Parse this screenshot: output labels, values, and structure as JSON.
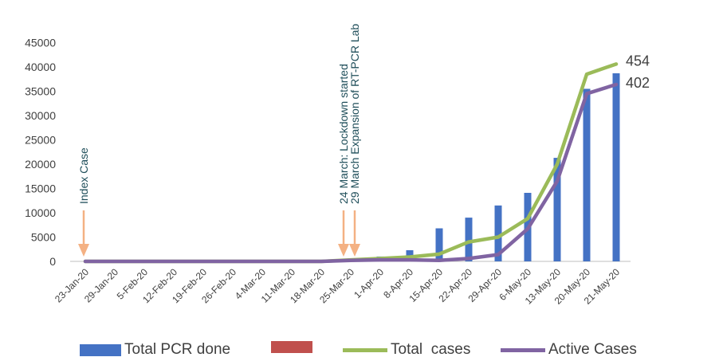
{
  "chart_data": {
    "type": "bar+line",
    "categories": [
      "23-Jan-20",
      "29-Jan-20",
      "5-Feb-20",
      "12-Feb-20",
      "19-Feb-20",
      "26-Feb-20",
      "4-Mar-20",
      "11-Mar-20",
      "18-Mar-20",
      "25-Mar-20",
      "1-Apr-20",
      "8-Apr-20",
      "15-Apr-20",
      "22-Apr-20",
      "29-Apr-20",
      "6-May-20",
      "13-May-20",
      "20-May-20",
      "21-May-20"
    ],
    "ylim": [
      0,
      45000
    ],
    "yticks": [
      "0",
      "5000",
      "10000",
      "15000",
      "20000",
      "25000",
      "30000",
      "35000",
      "40000",
      "45000"
    ],
    "series": [
      {
        "name": "Total PCR done",
        "kind": "bar",
        "color": "#4472c4",
        "values": [
          0,
          0,
          0,
          0,
          0,
          0,
          0,
          0,
          0,
          300,
          1000,
          2300,
          6800,
          9000,
          11500,
          14100,
          21300,
          35500,
          38700
        ]
      },
      {
        "name": "",
        "kind": "bar",
        "color": "#c0504d",
        "values": [
          0,
          0,
          0,
          0,
          0,
          0,
          0,
          0,
          0,
          0,
          0,
          0,
          0,
          0,
          0,
          0,
          0,
          0,
          0
        ]
      },
      {
        "name": "Total  cases",
        "kind": "line",
        "color": "#9bbb59",
        "values": [
          0,
          0,
          0,
          0,
          0,
          0,
          0,
          0,
          0,
          300,
          600,
          900,
          1500,
          4000,
          5000,
          8800,
          20000,
          38500,
          40600
        ]
      },
      {
        "name": "Active Cases",
        "kind": "line",
        "color": "#8064a2",
        "values": [
          0,
          0,
          0,
          0,
          0,
          0,
          0,
          0,
          0,
          200,
          300,
          300,
          200,
          600,
          1400,
          6700,
          16500,
          34500,
          36400
        ]
      }
    ],
    "annotations": [
      {
        "text": "Index Case",
        "category": "23-Jan-20"
      },
      {
        "text": "24 March: Lockdown started",
        "category": "25-Mar-20"
      },
      {
        "text": "29 March Expansion of RT-PCR Lab",
        "category": "1-Apr-20"
      }
    ],
    "end_labels": [
      "454",
      "402"
    ],
    "legend_position": "bottom",
    "grid": false
  }
}
